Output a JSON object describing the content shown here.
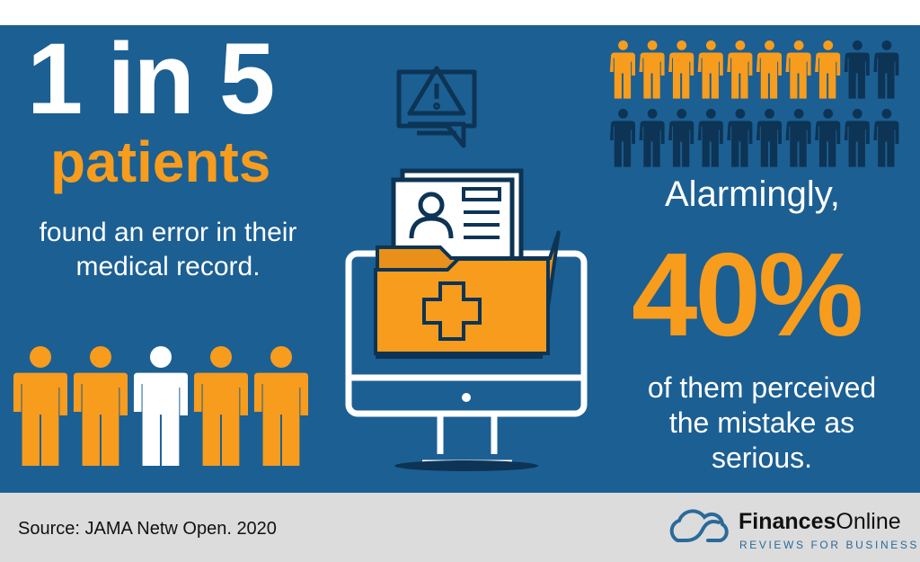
{
  "headline": {
    "stat": "1 in 5",
    "subject": "patients",
    "description_line1": "found an error in their",
    "description_line2": "medical record."
  },
  "left_people": {
    "total": 5,
    "highlighted_index": 2,
    "colors": {
      "default": "#f79c1d",
      "highlight": "#ffffff"
    }
  },
  "right_people": {
    "total": 20,
    "highlighted": 8,
    "colors": {
      "highlight": "#f79c1d",
      "default": "#0d3455"
    }
  },
  "right_stat": {
    "intro": "Alarmingly,",
    "value": "40%",
    "line1": "of them perceived",
    "line2": "the mistake as",
    "line3": "serious."
  },
  "illustration": {
    "icons": [
      "warning-chat-icon",
      "computer-monitor-icon",
      "medical-folder-icon",
      "patient-record-icon"
    ]
  },
  "footer": {
    "source": "Source: JAMA Netw Open. 2020",
    "brand_bold": "Finances",
    "brand_regular": "Online",
    "tagline": "REVIEWS FOR BUSINESS"
  },
  "colors": {
    "background": "#1c5f93",
    "accent": "#f79c1d",
    "footer": "#dcdcdc"
  }
}
